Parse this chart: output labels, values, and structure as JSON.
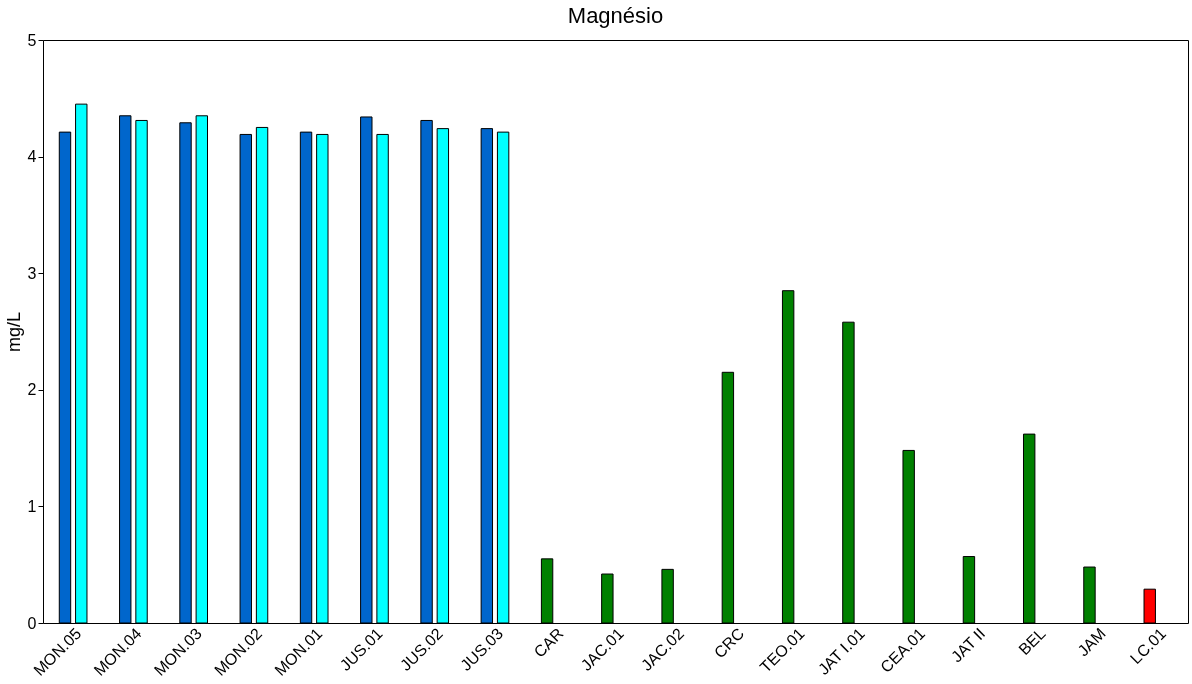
{
  "chart_data": {
    "type": "bar",
    "title": "Magnésio",
    "ylabel": "mg/L",
    "categories": [
      "MON.05",
      "MON.04",
      "MON.03",
      "MON.02",
      "MON.01",
      "JUS.01",
      "JUS.02",
      "JUS.03",
      "CAR",
      "JAC.01",
      "JAC.02",
      "CRC",
      "TEO.01",
      "JAT I.01",
      "CEA.01",
      "JAT II",
      "BEL",
      "JAM",
      "LC.01"
    ],
    "series": [
      {
        "colors": [
          "#0066cc",
          "#0066cc",
          "#0066cc",
          "#0066cc",
          "#0066cc",
          "#0066cc",
          "#0066cc",
          "#0066cc",
          "#008000",
          "#008000",
          "#008000",
          "#008000",
          "#008000",
          "#008000",
          "#008000",
          "#008000",
          "#008000",
          "#008000",
          "#ff0000"
        ],
        "values": [
          4.21,
          4.35,
          4.29,
          4.19,
          4.21,
          4.34,
          4.31,
          4.24,
          0.55,
          0.42,
          0.46,
          2.15,
          2.85,
          2.58,
          1.48,
          0.57,
          1.62,
          0.48,
          0.29
        ]
      },
      {
        "color": "#00ffff",
        "values": [
          4.45,
          4.31,
          4.35,
          4.25,
          4.19,
          4.19,
          4.24,
          4.21,
          null,
          null,
          null,
          null,
          null,
          null,
          null,
          null,
          null,
          null,
          null
        ]
      }
    ],
    "ylim": [
      0,
      5
    ],
    "yticks": [
      0,
      1,
      2,
      3,
      4,
      5
    ],
    "grid": false
  }
}
